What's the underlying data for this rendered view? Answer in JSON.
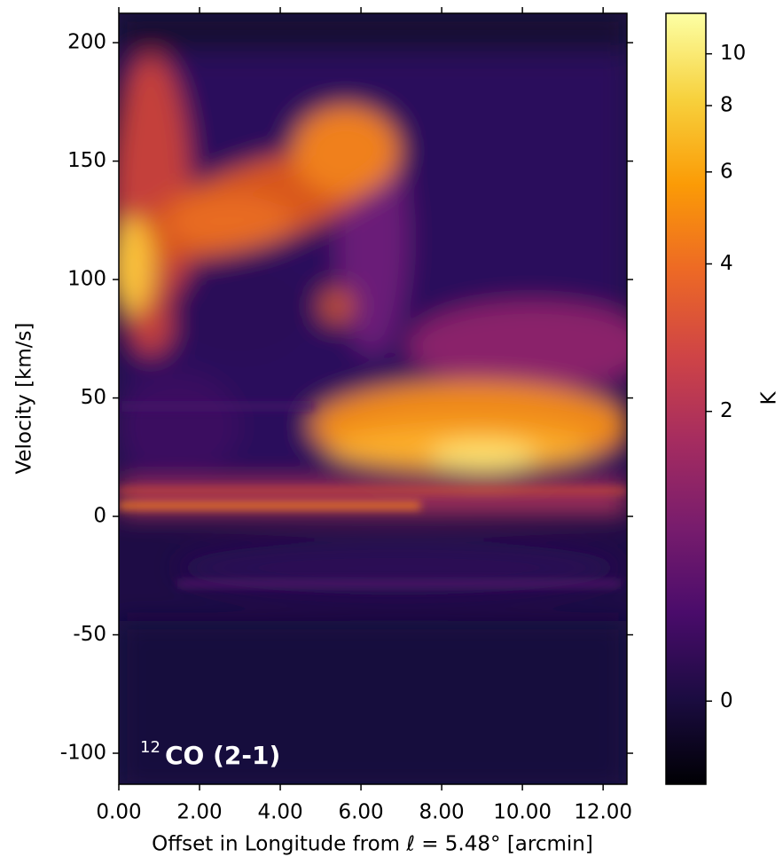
{
  "chart_data": {
    "type": "heatmap",
    "annotation": {
      "sup": "12",
      "text": "CO (2-1)"
    },
    "xlabel": "Offset in Longitude from ℓ = 5.48° [arcmin]",
    "ylabel": "Velocity [km/s]",
    "xlim": [
      0,
      12.59
    ],
    "ylim": [
      -113.1,
      212.4
    ],
    "xticks": [
      {
        "value": 0,
        "label": "0.00"
      },
      {
        "value": 2,
        "label": "2.00"
      },
      {
        "value": 4,
        "label": "4.00"
      },
      {
        "value": 6,
        "label": "6.00"
      },
      {
        "value": 8,
        "label": "8.00"
      },
      {
        "value": 10,
        "label": "10.00"
      },
      {
        "value": 12,
        "label": "12.00"
      }
    ],
    "yticks": [
      -100,
      -50,
      0,
      50,
      100,
      150,
      200
    ],
    "colormap": "inferno",
    "colorbar": {
      "label": "K",
      "scale": "asinh",
      "asinh_a": 1.27,
      "clim": [
        -0.46,
        11.9
      ],
      "ticks": [
        0,
        2,
        4,
        6,
        8,
        10
      ]
    }
  }
}
